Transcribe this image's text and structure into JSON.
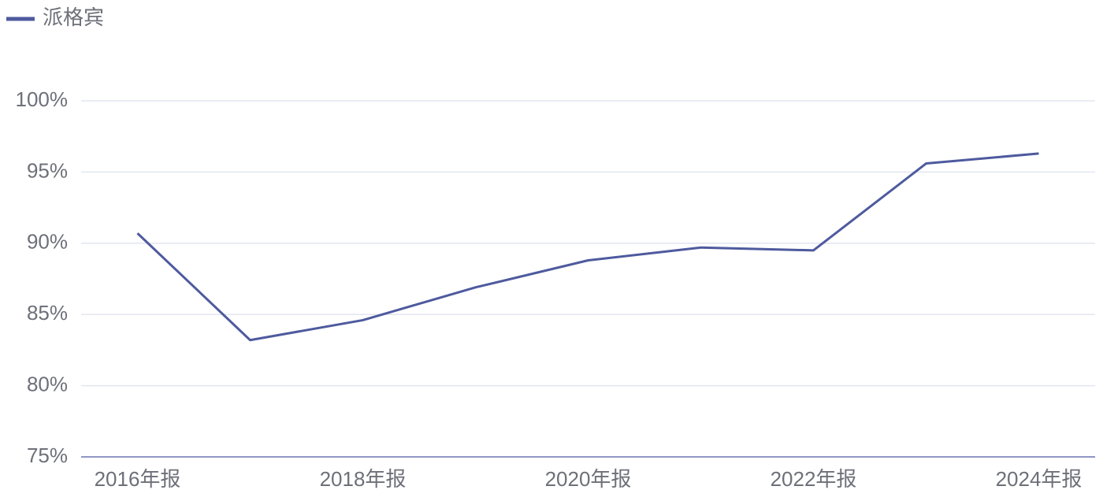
{
  "chart_data": {
    "type": "line",
    "categories": [
      "2016年报",
      null,
      "2018年报",
      null,
      "2020年报",
      null,
      "2022年报",
      null,
      "2024年报"
    ],
    "series": [
      {
        "name": "派格宾",
        "color": "#4e5a9e",
        "values": [
          90.7,
          83.2,
          84.6,
          86.9,
          88.8,
          89.7,
          89.5,
          95.6,
          96.3
        ]
      }
    ],
    "ylim": [
      75,
      100
    ],
    "yticks": [
      {
        "value": 75,
        "label": "75%"
      },
      {
        "value": 80,
        "label": "80%"
      },
      {
        "value": 85,
        "label": "85%"
      },
      {
        "value": 90,
        "label": "90%"
      },
      {
        "value": 95,
        "label": "95%"
      },
      {
        "value": 100,
        "label": "100%"
      }
    ],
    "grid": true,
    "legend": "top-left"
  }
}
